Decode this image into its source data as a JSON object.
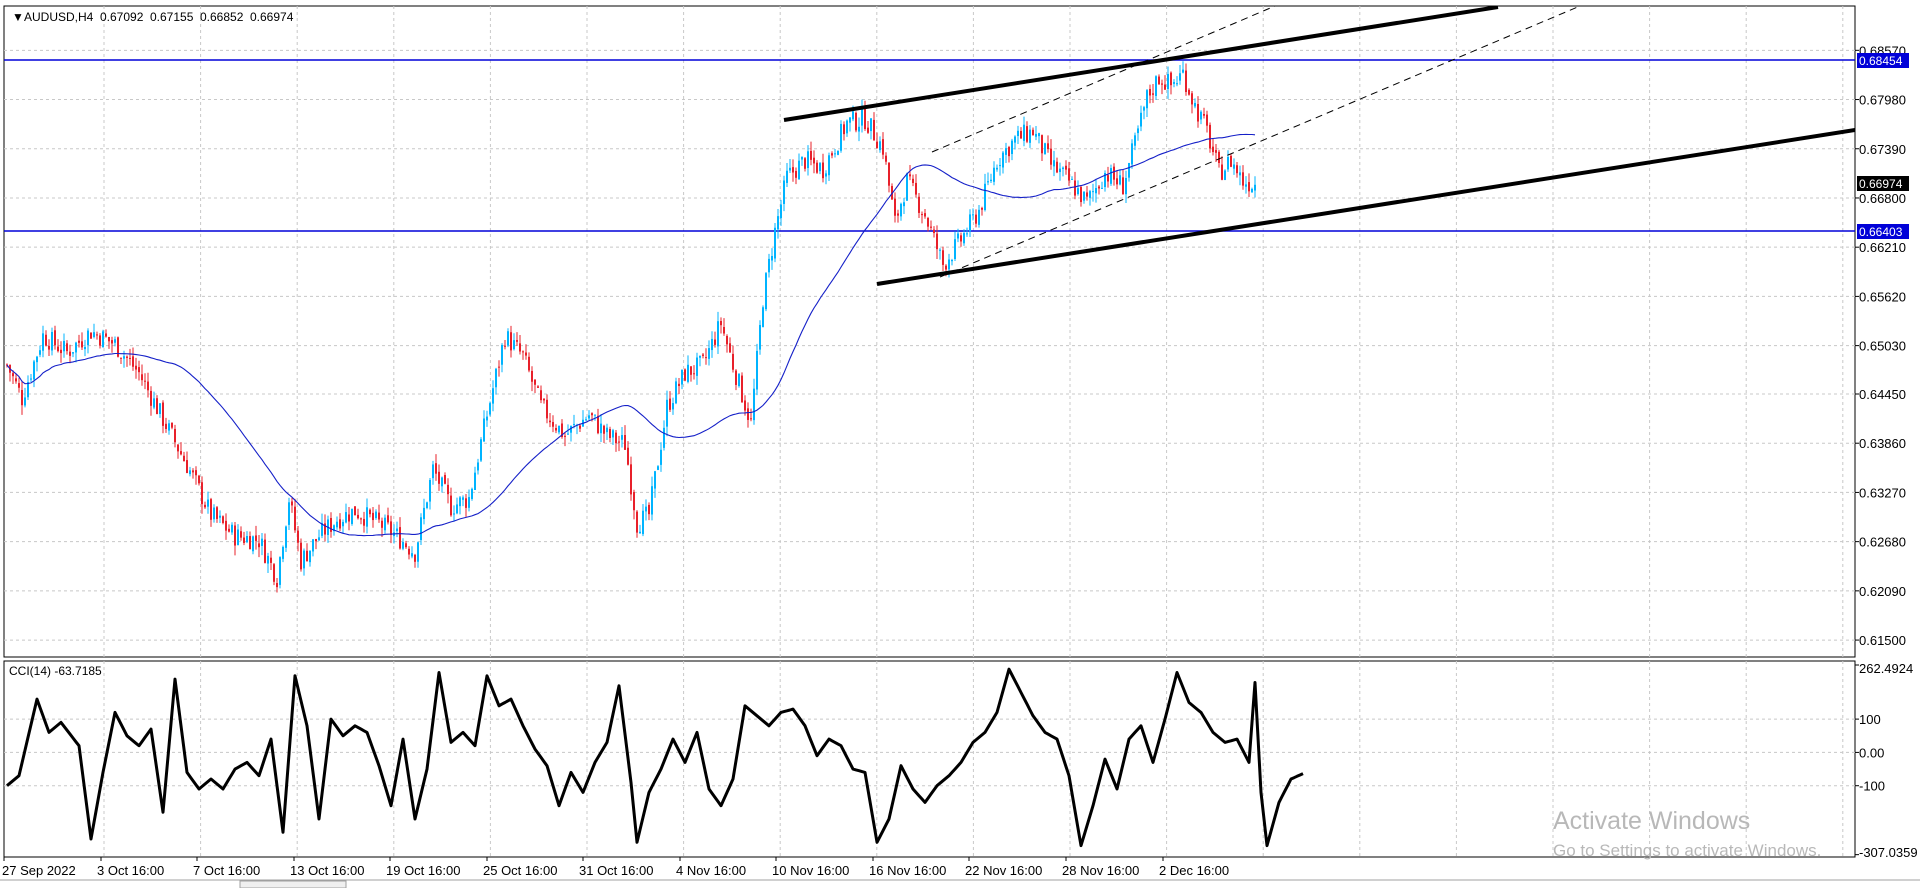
{
  "header": {
    "symbol": "AUDUSD,H4",
    "open": "0.67092",
    "high": "0.67155",
    "low": "0.66852",
    "close": "0.66974"
  },
  "indicator": {
    "label": "CCI(14) -63.7185",
    "period": 14,
    "current": -63.7185,
    "scale_max": "262.4924",
    "scale_min": "-307.0359"
  },
  "watermark": {
    "line1": "Activate Windows",
    "line2": "Go to Settings to activate Windows."
  },
  "colors": {
    "bull": "#00b4ff",
    "bear": "#e8202a",
    "ma": "#1520c8",
    "level": "#0000d8",
    "trend": "#000000",
    "grid": "#c8c8c8"
  },
  "chart_data": [
    {
      "type": "candlestick",
      "symbol": "AUDUSD",
      "timeframe": "H4",
      "title": "AUDUSD,H4",
      "ylim": [
        0.6125,
        0.6905
      ],
      "y_ticks": [
        "0.68570",
        "0.67980",
        "0.67390",
        "0.66800",
        "0.66210",
        "0.65620",
        "0.65030",
        "0.64450",
        "0.63860",
        "0.63270",
        "0.62680",
        "0.62090",
        "0.61500"
      ],
      "x_ticks": [
        "27 Sep 2022",
        "3 Oct 16:00",
        "7 Oct 16:00",
        "13 Oct 16:00",
        "19 Oct 16:00",
        "25 Oct 16:00",
        "31 Oct 16:00",
        "4 Nov 16:00",
        "10 Nov 16:00",
        "16 Nov 16:00",
        "22 Nov 16:00",
        "28 Nov 16:00",
        "2 Dec 16:00"
      ],
      "current_price": "0.66974",
      "horizontal_levels": [
        "0.68454",
        "0.66403"
      ],
      "moving_average": true,
      "grid": true,
      "anchors": [
        {
          "i": 0,
          "v": 0.648
        },
        {
          "i": 5,
          "v": 0.644
        },
        {
          "i": 12,
          "v": 0.6515
        },
        {
          "i": 20,
          "v": 0.6495
        },
        {
          "i": 28,
          "v": 0.652
        },
        {
          "i": 36,
          "v": 0.6505
        },
        {
          "i": 44,
          "v": 0.647
        },
        {
          "i": 52,
          "v": 0.6415
        },
        {
          "i": 60,
          "v": 0.636
        },
        {
          "i": 68,
          "v": 0.63
        },
        {
          "i": 76,
          "v": 0.6275
        },
        {
          "i": 84,
          "v": 0.627
        },
        {
          "i": 90,
          "v": 0.6225
        },
        {
          "i": 94,
          "v": 0.632
        },
        {
          "i": 98,
          "v": 0.6245
        },
        {
          "i": 104,
          "v": 0.6275
        },
        {
          "i": 110,
          "v": 0.6295
        },
        {
          "i": 116,
          "v": 0.6305
        },
        {
          "i": 124,
          "v": 0.629
        },
        {
          "i": 130,
          "v": 0.6275
        },
        {
          "i": 136,
          "v": 0.6255
        },
        {
          "i": 142,
          "v": 0.6355
        },
        {
          "i": 148,
          "v": 0.631
        },
        {
          "i": 154,
          "v": 0.632
        },
        {
          "i": 160,
          "v": 0.642
        },
        {
          "i": 166,
          "v": 0.6515
        },
        {
          "i": 172,
          "v": 0.649
        },
        {
          "i": 178,
          "v": 0.643
        },
        {
          "i": 186,
          "v": 0.6395
        },
        {
          "i": 194,
          "v": 0.642
        },
        {
          "i": 200,
          "v": 0.6395
        },
        {
          "i": 206,
          "v": 0.6385
        },
        {
          "i": 210,
          "v": 0.629
        },
        {
          "i": 214,
          "v": 0.63
        },
        {
          "i": 220,
          "v": 0.643
        },
        {
          "i": 226,
          "v": 0.647
        },
        {
          "i": 232,
          "v": 0.648
        },
        {
          "i": 238,
          "v": 0.653
        },
        {
          "i": 242,
          "v": 0.648
        },
        {
          "i": 248,
          "v": 0.641
        },
        {
          "i": 252,
          "v": 0.656
        },
        {
          "i": 256,
          "v": 0.664
        },
        {
          "i": 260,
          "v": 0.6705
        },
        {
          "i": 266,
          "v": 0.6725
        },
        {
          "i": 272,
          "v": 0.6715
        },
        {
          "i": 280,
          "v": 0.677
        },
        {
          "i": 286,
          "v": 0.6775
        },
        {
          "i": 292,
          "v": 0.674
        },
        {
          "i": 296,
          "v": 0.665
        },
        {
          "i": 300,
          "v": 0.67
        },
        {
          "i": 306,
          "v": 0.666
        },
        {
          "i": 312,
          "v": 0.66
        },
        {
          "i": 318,
          "v": 0.663
        },
        {
          "i": 324,
          "v": 0.6665
        },
        {
          "i": 330,
          "v": 0.6725
        },
        {
          "i": 336,
          "v": 0.675
        },
        {
          "i": 342,
          "v": 0.676
        },
        {
          "i": 348,
          "v": 0.672
        },
        {
          "i": 354,
          "v": 0.67
        },
        {
          "i": 360,
          "v": 0.6675
        },
        {
          "i": 366,
          "v": 0.671
        },
        {
          "i": 372,
          "v": 0.6695
        },
        {
          "i": 376,
          "v": 0.6745
        },
        {
          "i": 380,
          "v": 0.68
        },
        {
          "i": 384,
          "v": 0.6825
        },
        {
          "i": 388,
          "v": 0.6815
        },
        {
          "i": 392,
          "v": 0.683
        },
        {
          "i": 396,
          "v": 0.679
        },
        {
          "i": 400,
          "v": 0.676
        },
        {
          "i": 404,
          "v": 0.671
        },
        {
          "i": 408,
          "v": 0.6725
        },
        {
          "i": 412,
          "v": 0.67
        },
        {
          "i": 416,
          "v": 0.6697
        }
      ]
    },
    {
      "type": "line",
      "title": "CCI(14) -63.7185",
      "ylim": [
        -307.0359,
        262.4924
      ],
      "y_ticks": [
        "262.4924",
        "100",
        "0.00",
        "-100",
        "-307.0359"
      ],
      "anchors": [
        {
          "i": 0,
          "v": -100
        },
        {
          "i": 4,
          "v": -70
        },
        {
          "i": 10,
          "v": 160
        },
        {
          "i": 14,
          "v": 60
        },
        {
          "i": 18,
          "v": 90
        },
        {
          "i": 24,
          "v": 20
        },
        {
          "i": 28,
          "v": -260
        },
        {
          "i": 32,
          "v": -60
        },
        {
          "i": 36,
          "v": 120
        },
        {
          "i": 40,
          "v": 50
        },
        {
          "i": 44,
          "v": 20
        },
        {
          "i": 48,
          "v": 70
        },
        {
          "i": 52,
          "v": -180
        },
        {
          "i": 56,
          "v": 220
        },
        {
          "i": 60,
          "v": -60
        },
        {
          "i": 64,
          "v": -110
        },
        {
          "i": 68,
          "v": -80
        },
        {
          "i": 72,
          "v": -110
        },
        {
          "i": 76,
          "v": -50
        },
        {
          "i": 80,
          "v": -30
        },
        {
          "i": 84,
          "v": -70
        },
        {
          "i": 88,
          "v": 40
        },
        {
          "i": 92,
          "v": -240
        },
        {
          "i": 96,
          "v": 230
        },
        {
          "i": 100,
          "v": 80
        },
        {
          "i": 104,
          "v": -200
        },
        {
          "i": 108,
          "v": 100
        },
        {
          "i": 112,
          "v": 50
        },
        {
          "i": 116,
          "v": 80
        },
        {
          "i": 120,
          "v": 60
        },
        {
          "i": 124,
          "v": -40
        },
        {
          "i": 128,
          "v": -160
        },
        {
          "i": 132,
          "v": 40
        },
        {
          "i": 136,
          "v": -200
        },
        {
          "i": 140,
          "v": -50
        },
        {
          "i": 144,
          "v": 240
        },
        {
          "i": 148,
          "v": 30
        },
        {
          "i": 152,
          "v": 60
        },
        {
          "i": 156,
          "v": 20
        },
        {
          "i": 160,
          "v": 230
        },
        {
          "i": 164,
          "v": 140
        },
        {
          "i": 168,
          "v": 160
        },
        {
          "i": 172,
          "v": 80
        },
        {
          "i": 176,
          "v": 10
        },
        {
          "i": 180,
          "v": -40
        },
        {
          "i": 184,
          "v": -160
        },
        {
          "i": 188,
          "v": -60
        },
        {
          "i": 192,
          "v": -120
        },
        {
          "i": 196,
          "v": -30
        },
        {
          "i": 200,
          "v": 30
        },
        {
          "i": 204,
          "v": 200
        },
        {
          "i": 208,
          "v": -90
        },
        {
          "i": 210,
          "v": -270
        },
        {
          "i": 214,
          "v": -120
        },
        {
          "i": 218,
          "v": -50
        },
        {
          "i": 222,
          "v": 40
        },
        {
          "i": 226,
          "v": -30
        },
        {
          "i": 230,
          "v": 60
        },
        {
          "i": 234,
          "v": -110
        },
        {
          "i": 238,
          "v": -160
        },
        {
          "i": 242,
          "v": -80
        },
        {
          "i": 246,
          "v": 140
        },
        {
          "i": 250,
          "v": 110
        },
        {
          "i": 254,
          "v": 80
        },
        {
          "i": 258,
          "v": 120
        },
        {
          "i": 262,
          "v": 130
        },
        {
          "i": 266,
          "v": 80
        },
        {
          "i": 270,
          "v": -10
        },
        {
          "i": 274,
          "v": 40
        },
        {
          "i": 278,
          "v": 20
        },
        {
          "i": 282,
          "v": -50
        },
        {
          "i": 286,
          "v": -60
        },
        {
          "i": 290,
          "v": -270
        },
        {
          "i": 294,
          "v": -200
        },
        {
          "i": 298,
          "v": -40
        },
        {
          "i": 302,
          "v": -110
        },
        {
          "i": 306,
          "v": -150
        },
        {
          "i": 310,
          "v": -100
        },
        {
          "i": 314,
          "v": -70
        },
        {
          "i": 318,
          "v": -30
        },
        {
          "i": 322,
          "v": 30
        },
        {
          "i": 326,
          "v": 60
        },
        {
          "i": 330,
          "v": 120
        },
        {
          "i": 334,
          "v": 250
        },
        {
          "i": 338,
          "v": 180
        },
        {
          "i": 342,
          "v": 110
        },
        {
          "i": 346,
          "v": 60
        },
        {
          "i": 350,
          "v": 40
        },
        {
          "i": 354,
          "v": -70
        },
        {
          "i": 358,
          "v": -280
        },
        {
          "i": 362,
          "v": -160
        },
        {
          "i": 366,
          "v": -20
        },
        {
          "i": 370,
          "v": -110
        },
        {
          "i": 374,
          "v": 40
        },
        {
          "i": 378,
          "v": 80
        },
        {
          "i": 382,
          "v": -30
        },
        {
          "i": 386,
          "v": 100
        },
        {
          "i": 390,
          "v": 240
        },
        {
          "i": 394,
          "v": 150
        },
        {
          "i": 398,
          "v": 120
        },
        {
          "i": 402,
          "v": 60
        },
        {
          "i": 406,
          "v": 30
        },
        {
          "i": 410,
          "v": 40
        },
        {
          "i": 414,
          "v": -30
        },
        {
          "i": 416,
          "v": 210
        },
        {
          "i": 418,
          "v": -120
        },
        {
          "i": 420,
          "v": -280
        },
        {
          "i": 424,
          "v": -150
        },
        {
          "i": 428,
          "v": -80
        },
        {
          "i": 432,
          "v": -63.7185
        }
      ]
    }
  ]
}
